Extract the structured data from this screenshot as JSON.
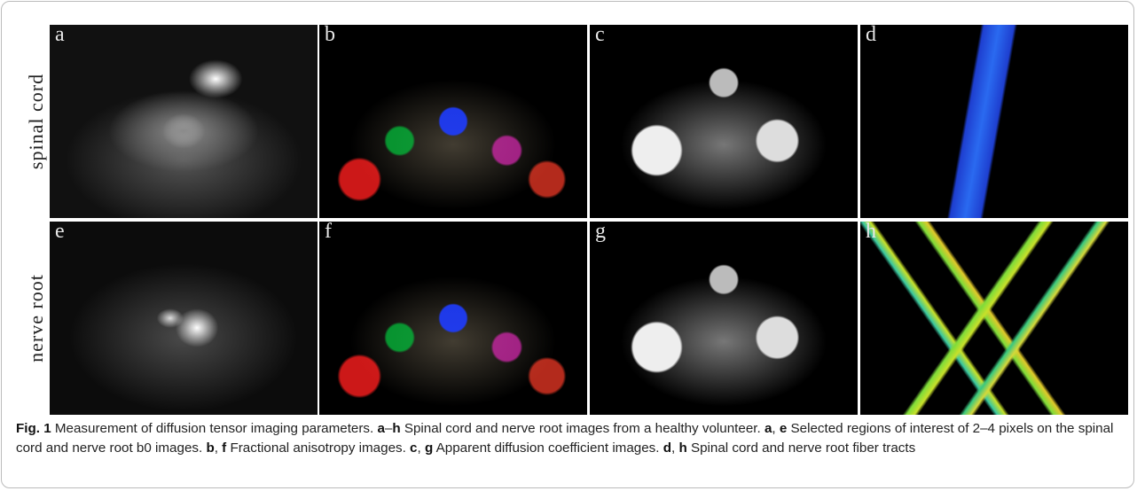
{
  "row_labels": [
    "spinal cord",
    "nerve root"
  ],
  "panels": [
    {
      "label": "a"
    },
    {
      "label": "b"
    },
    {
      "label": "c"
    },
    {
      "label": "d"
    },
    {
      "label": "e"
    },
    {
      "label": "f"
    },
    {
      "label": "g"
    },
    {
      "label": "h"
    }
  ],
  "caption": {
    "segments": [
      {
        "text": "Fig. 1",
        "bold": true
      },
      {
        "text": "  Measurement of diffusion tensor imaging parameters. ",
        "bold": false
      },
      {
        "text": "a",
        "bold": true
      },
      {
        "text": "–",
        "bold": false
      },
      {
        "text": "h",
        "bold": true
      },
      {
        "text": " Spinal cord and nerve root images from a healthy volunteer. ",
        "bold": false
      },
      {
        "text": "a",
        "bold": true
      },
      {
        "text": ", ",
        "bold": false
      },
      {
        "text": "e",
        "bold": true
      },
      {
        "text": " Selected regions of interest of 2–4 pixels on the spinal cord and nerve root b0 images. ",
        "bold": false
      },
      {
        "text": "b",
        "bold": true
      },
      {
        "text": ", ",
        "bold": false
      },
      {
        "text": "f",
        "bold": true
      },
      {
        "text": " Fractional anisotropy images. ",
        "bold": false
      },
      {
        "text": "c",
        "bold": true
      },
      {
        "text": ", ",
        "bold": false
      },
      {
        "text": "g",
        "bold": true
      },
      {
        "text": " Apparent diffusion coefficient images. ",
        "bold": false
      },
      {
        "text": "d",
        "bold": true
      },
      {
        "text": ", ",
        "bold": false
      },
      {
        "text": "h",
        "bold": true
      },
      {
        "text": " Spinal cord and nerve root fiber tracts",
        "bold": false
      }
    ]
  }
}
